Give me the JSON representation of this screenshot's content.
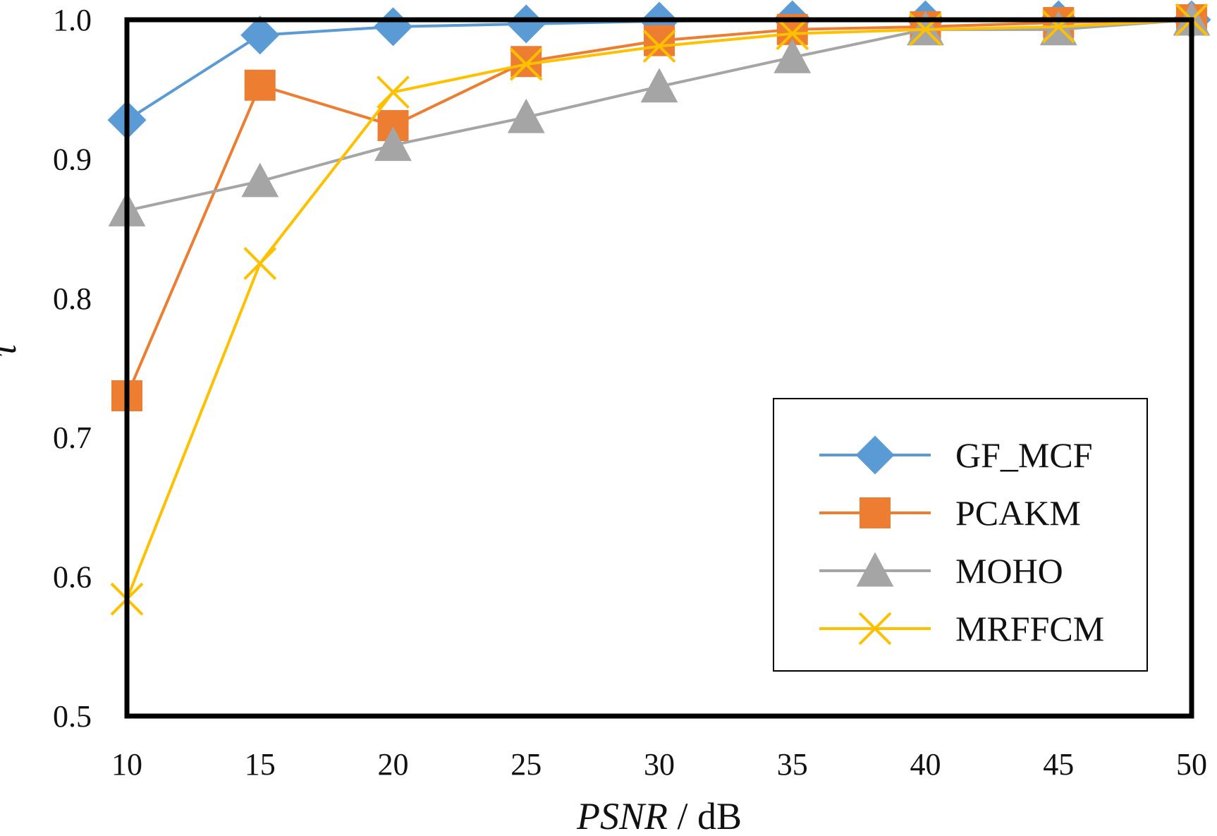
{
  "chart_data": {
    "type": "line",
    "x": [
      10,
      15,
      20,
      25,
      30,
      35,
      40,
      45,
      50
    ],
    "xlim": [
      10,
      50
    ],
    "ylim": [
      0.5,
      1.0
    ],
    "x_ticks": [
      "10",
      "15",
      "20",
      "25",
      "30",
      "35",
      "40",
      "45",
      "50"
    ],
    "y_ticks": [
      "0.5",
      "0.6",
      "0.7",
      "0.8",
      "0.9",
      "1.0"
    ],
    "xlabel": {
      "italic": "PSNR",
      "rest": " / dB"
    },
    "ylabel": "τ",
    "grid": false,
    "legend_position": "lower-right",
    "series": [
      {
        "name": "GF_MCF",
        "color": "#5B9BD5",
        "marker": "diamond",
        "values": [
          0.928,
          0.989,
          0.995,
          0.997,
          0.999,
          1.0,
          1.0,
          1.0,
          1.0
        ]
      },
      {
        "name": "PCAKM",
        "color": "#ED7D31",
        "marker": "square",
        "values": [
          0.73,
          0.953,
          0.924,
          0.97,
          0.985,
          0.993,
          0.995,
          0.998,
          1.0
        ]
      },
      {
        "name": "MOHO",
        "color": "#A5A5A5",
        "marker": "triangle",
        "values": [
          0.863,
          0.884,
          0.91,
          0.93,
          0.952,
          0.973,
          0.993,
          0.993,
          1.0
        ]
      },
      {
        "name": "MRFFCM",
        "color": "#FFC000",
        "marker": "x",
        "values": [
          0.584,
          0.825,
          0.948,
          0.968,
          0.981,
          0.99,
          0.993,
          0.995,
          1.0
        ]
      }
    ]
  }
}
